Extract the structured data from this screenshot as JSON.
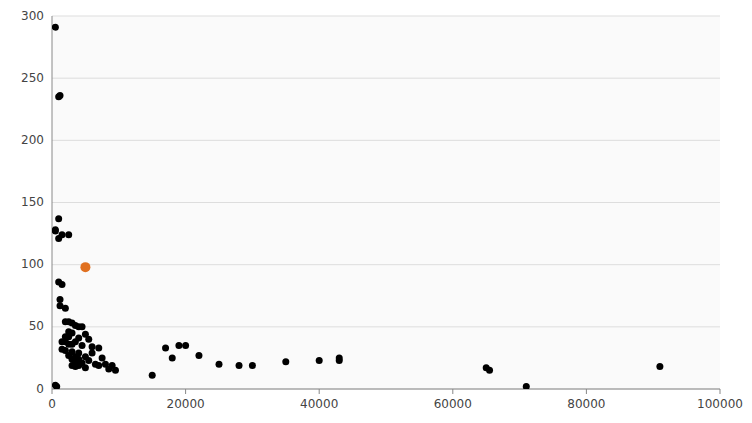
{
  "chart_data": {
    "type": "scatter",
    "series": [
      {
        "color": "#000000",
        "x": [
          500,
          1000,
          1200,
          1000,
          500,
          500,
          1500,
          2500,
          1000,
          1000,
          1500,
          1200,
          1200,
          2000,
          2000,
          2500,
          3000,
          3500,
          4000,
          4500,
          2500,
          3000,
          5000,
          2000,
          2500,
          4000,
          5500,
          1500,
          2000,
          3500,
          2500,
          3000,
          4500,
          6000,
          7000,
          1500,
          2000,
          3000,
          4000,
          6000,
          2500,
          3500,
          5000,
          7500,
          3000,
          4000,
          5500,
          3500,
          4500,
          6500,
          8000,
          3000,
          4000,
          7000,
          9000,
          3500,
          5000,
          8500,
          9500,
          15000,
          18000,
          20000,
          22000,
          17000,
          19000,
          25000,
          28000,
          30000,
          35000,
          40000,
          43000,
          43000,
          65000,
          65500,
          71000,
          91000,
          500,
          700
        ],
        "values": [
          291,
          235,
          236,
          137,
          127,
          128,
          124,
          124,
          121,
          86,
          84,
          72,
          67,
          65,
          54,
          54,
          53,
          51,
          50,
          50,
          46,
          45,
          44,
          42,
          42,
          41,
          40,
          38,
          38,
          38,
          36,
          36,
          35,
          34,
          33,
          32,
          31,
          30,
          29,
          29,
          27,
          26,
          26,
          25,
          24,
          24,
          23,
          22,
          21,
          20,
          20,
          19,
          19,
          19,
          19,
          18,
          17,
          16,
          15,
          11,
          25,
          35,
          27,
          33,
          35,
          20,
          19,
          19,
          22,
          23,
          25,
          23,
          17,
          15,
          2,
          18,
          3,
          2
        ]
      },
      {
        "color": "#e07020",
        "x": [
          5000
        ],
        "values": [
          98
        ]
      }
    ],
    "xlim": [
      0,
      100000
    ],
    "ylim": [
      0,
      300
    ],
    "xticks": [
      0,
      20000,
      40000,
      60000,
      80000,
      100000
    ],
    "yticks": [
      0,
      50,
      100,
      150,
      200,
      250,
      300
    ],
    "grid": true
  }
}
